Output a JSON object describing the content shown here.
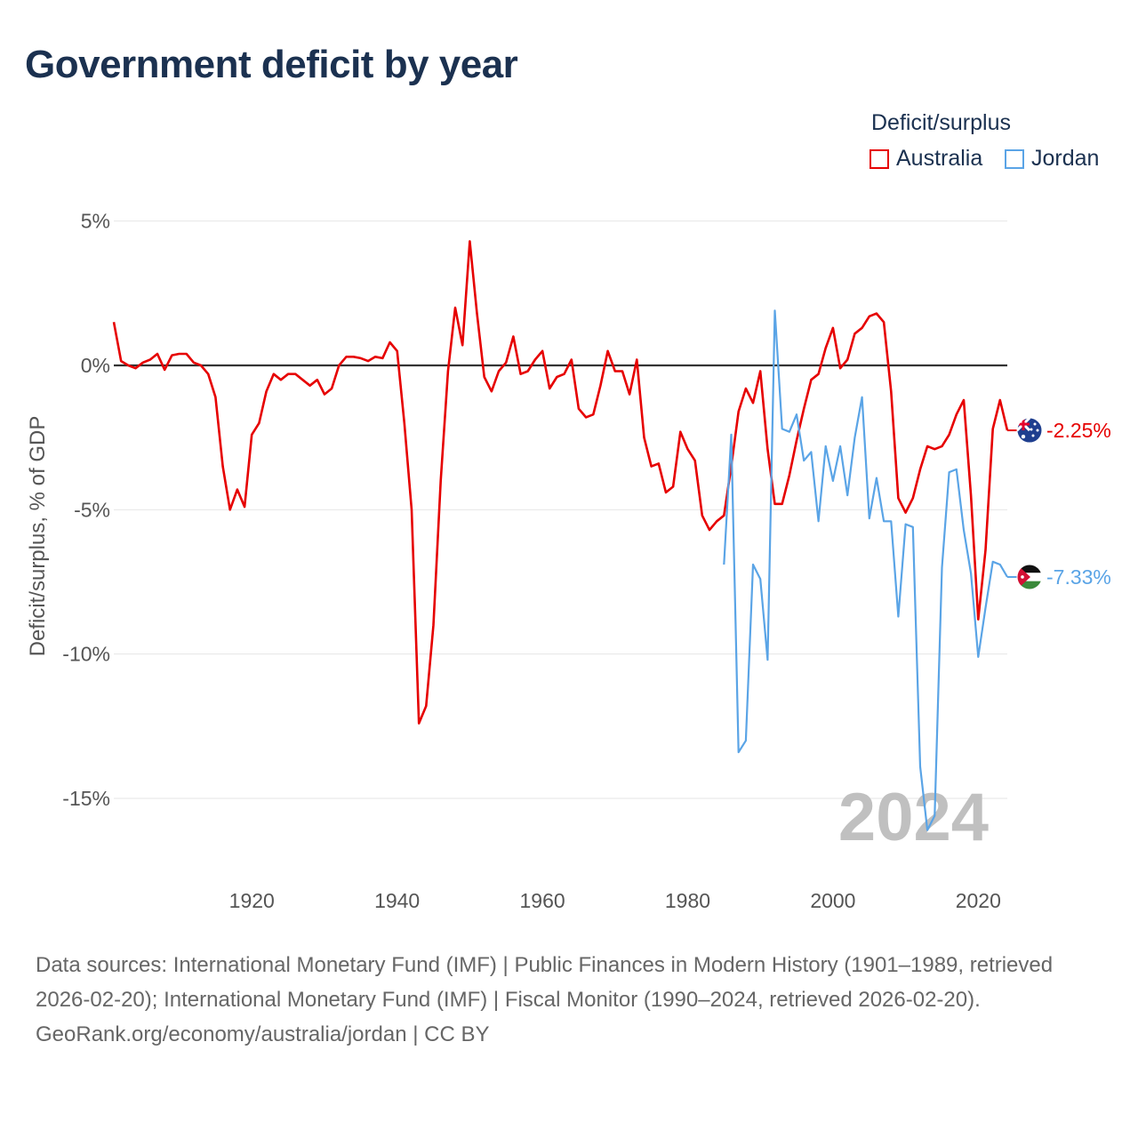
{
  "title": "Government deficit by year",
  "legend": {
    "title": "Deficit/surplus",
    "items": [
      {
        "label": "Australia",
        "color": "#e60000"
      },
      {
        "label": "Jordan",
        "color": "#5aa4e6"
      }
    ]
  },
  "chart_data": {
    "type": "line",
    "title": "Government deficit by year",
    "xlabel": "",
    "ylabel": "Deficit/surplus, % of GDP",
    "xlim": [
      1900,
      2024
    ],
    "ylim": [
      -17,
      5
    ],
    "x_ticks": [
      1920,
      1940,
      1960,
      1980,
      2000,
      2020
    ],
    "x_tick_labels": [
      "1920",
      "1940",
      "1960",
      "1980",
      "2000",
      "2020"
    ],
    "y_ticks": [
      5,
      0,
      -5,
      -10,
      -15
    ],
    "y_tick_labels": [
      "5%",
      "0%",
      "-5%",
      "-10%",
      "-15%"
    ],
    "year_watermark": "2024",
    "series": [
      {
        "name": "Australia",
        "color": "#e60000",
        "end_label": "-2.25%",
        "flag": "australia-flag",
        "x": [
          1901,
          1902,
          1903,
          1904,
          1905,
          1906,
          1907,
          1908,
          1909,
          1910,
          1911,
          1912,
          1913,
          1914,
          1915,
          1916,
          1917,
          1918,
          1919,
          1920,
          1921,
          1922,
          1923,
          1924,
          1925,
          1926,
          1927,
          1928,
          1929,
          1930,
          1931,
          1932,
          1933,
          1934,
          1935,
          1936,
          1937,
          1938,
          1939,
          1940,
          1941,
          1942,
          1943,
          1944,
          1945,
          1946,
          1947,
          1948,
          1949,
          1950,
          1951,
          1952,
          1953,
          1954,
          1955,
          1956,
          1957,
          1958,
          1959,
          1960,
          1961,
          1962,
          1963,
          1964,
          1965,
          1966,
          1967,
          1968,
          1969,
          1970,
          1971,
          1972,
          1973,
          1974,
          1975,
          1976,
          1977,
          1978,
          1979,
          1980,
          1981,
          1982,
          1983,
          1984,
          1985,
          1986,
          1987,
          1988,
          1989,
          1990,
          1991,
          1992,
          1993,
          1994,
          1995,
          1996,
          1997,
          1998,
          1999,
          2000,
          2001,
          2002,
          2003,
          2004,
          2005,
          2006,
          2007,
          2008,
          2009,
          2010,
          2011,
          2012,
          2013,
          2014,
          2015,
          2016,
          2017,
          2018,
          2019,
          2020,
          2021,
          2022,
          2023,
          2024
        ],
        "values": [
          1.5,
          0.15,
          0.0,
          -0.1,
          0.1,
          0.2,
          0.4,
          -0.15,
          0.35,
          0.4,
          0.4,
          0.1,
          0.0,
          -0.3,
          -1.1,
          -3.5,
          -5.0,
          -4.3,
          -4.9,
          -2.4,
          -2.0,
          -0.9,
          -0.3,
          -0.5,
          -0.3,
          -0.3,
          -0.5,
          -0.7,
          -0.5,
          -1.0,
          -0.8,
          0.0,
          0.3,
          0.3,
          0.25,
          0.15,
          0.3,
          0.25,
          0.8,
          0.5,
          -2.0,
          -5.0,
          -12.4,
          -11.8,
          -9.0,
          -4.0,
          -0.2,
          2.0,
          0.7,
          4.3,
          1.8,
          -0.4,
          -0.9,
          -0.2,
          0.1,
          1.0,
          -0.3,
          -0.2,
          0.2,
          0.5,
          -0.8,
          -0.4,
          -0.3,
          0.2,
          -1.5,
          -1.8,
          -1.7,
          -0.7,
          0.5,
          -0.2,
          -0.2,
          -1.0,
          0.2,
          -2.5,
          -3.5,
          -3.4,
          -4.4,
          -4.2,
          -2.3,
          -2.9,
          -3.3,
          -5.2,
          -5.7,
          -5.4,
          -5.2,
          -3.5,
          -1.6,
          -0.8,
          -1.3,
          -0.2,
          -2.9,
          -4.8,
          -4.8,
          -3.8,
          -2.6,
          -1.5,
          -0.5,
          -0.3,
          0.6,
          1.3,
          -0.1,
          0.2,
          1.1,
          1.3,
          1.7,
          1.8,
          1.5,
          -0.9,
          -4.6,
          -5.1,
          -4.6,
          -3.6,
          -2.8,
          -2.9,
          -2.8,
          -2.4,
          -1.7,
          -1.2,
          -4.5,
          -8.8,
          -6.4,
          -2.2,
          -1.2,
          -2.25
        ]
      },
      {
        "name": "Jordan",
        "color": "#5aa4e6",
        "end_label": "-7.33%",
        "flag": "jordan-flag",
        "x": [
          1985,
          1986,
          1987,
          1988,
          1989,
          1990,
          1991,
          1992,
          1993,
          1994,
          1995,
          1996,
          1997,
          1998,
          1999,
          2000,
          2001,
          2002,
          2003,
          2004,
          2005,
          2006,
          2007,
          2008,
          2009,
          2010,
          2011,
          2012,
          2013,
          2014,
          2015,
          2016,
          2017,
          2018,
          2019,
          2020,
          2021,
          2022,
          2023,
          2024
        ],
        "values": [
          -6.9,
          -2.4,
          -13.4,
          -13.0,
          -6.9,
          -7.4,
          -10.2,
          1.9,
          -2.2,
          -2.3,
          -1.7,
          -3.3,
          -3.0,
          -5.4,
          -2.8,
          -4.0,
          -2.8,
          -4.5,
          -2.5,
          -1.1,
          -5.3,
          -3.9,
          -5.4,
          -5.4,
          -8.7,
          -5.5,
          -5.6,
          -13.9,
          -16.1,
          -15.6,
          -7.0,
          -3.7,
          -3.6,
          -5.7,
          -7.2,
          -10.1,
          -8.4,
          -6.8,
          -6.9,
          -7.33
        ]
      }
    ]
  },
  "footer": {
    "sources": "Data sources: International Monetary Fund (IMF) | Public Finances in Modern History (1901–1989, retrieved 2026-02-20); International Monetary Fund (IMF) | Fiscal Monitor (1990–2024, retrieved 2026-02-20).",
    "site": "GeoRank.org/economy/australia/jordan | CC BY"
  }
}
